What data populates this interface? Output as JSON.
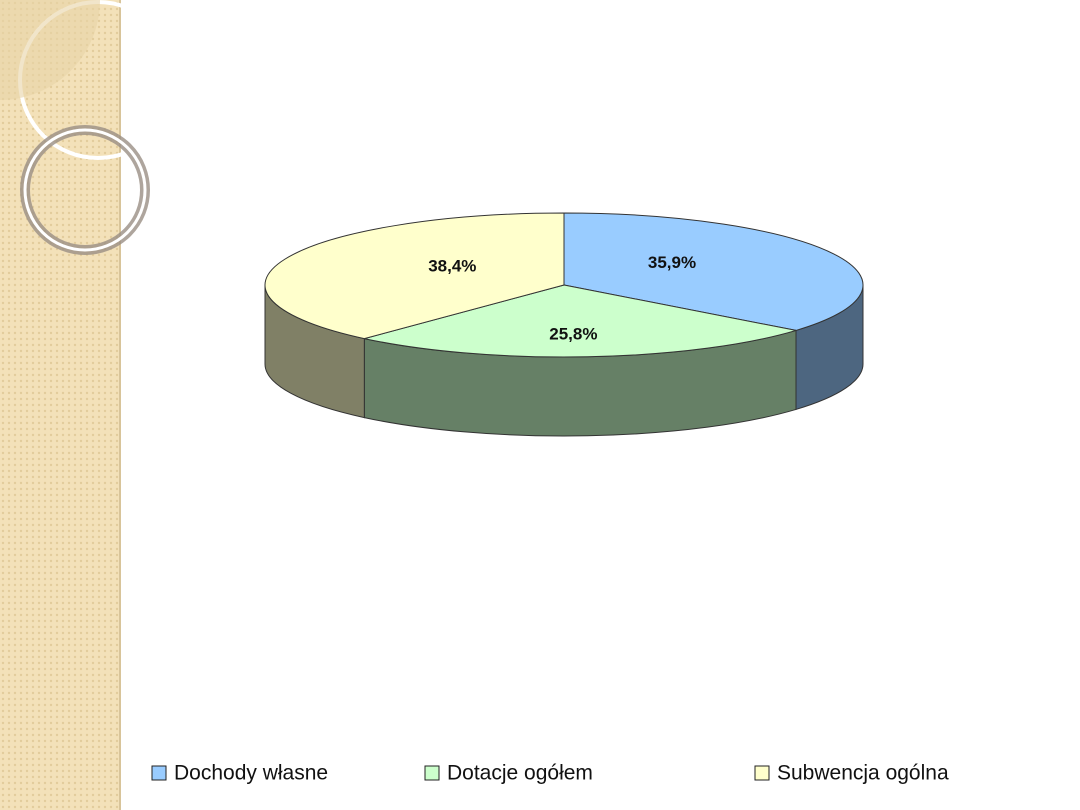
{
  "chart_data": {
    "type": "pie",
    "categories": [
      "Dochody własne",
      "Dotacje ogółem",
      "Subwencja ogólna"
    ],
    "values": [
      35.9,
      25.8,
      38.4
    ],
    "value_labels": [
      "35,9%",
      "25,8%",
      "38,4%"
    ],
    "colors": [
      "#99ccff",
      "#ccffcc",
      "#ffffcc"
    ],
    "legend": "bottom"
  }
}
